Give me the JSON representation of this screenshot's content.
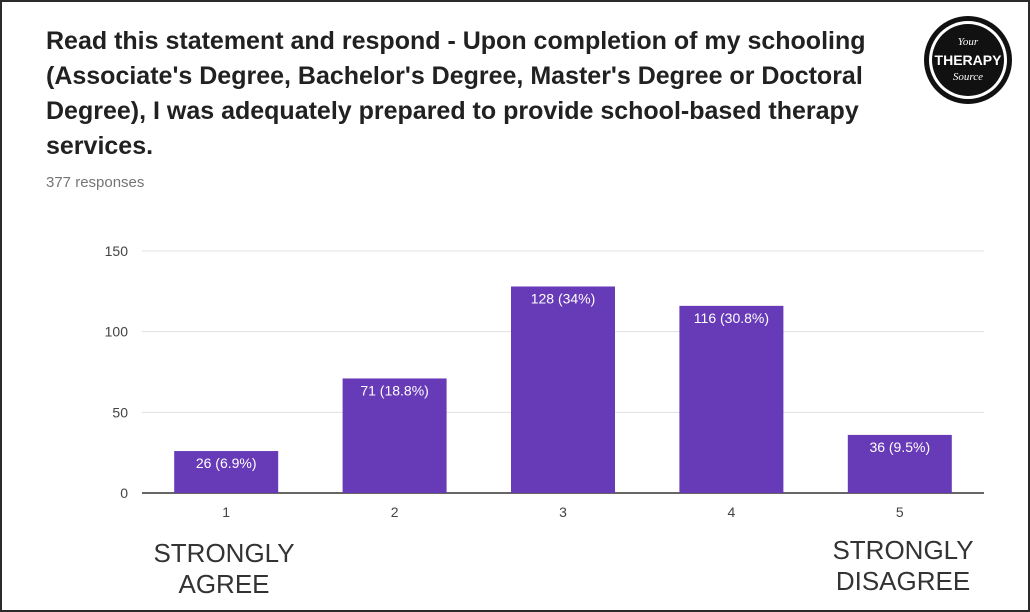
{
  "header": {
    "title": "Read this statement and respond - Upon completion of my schooling (Associate's Degree, Bachelor's Degree, Master's Degree or Doctoral Degree), I was adequately prepared to provide school-based therapy services.",
    "responses": "377 responses"
  },
  "logo": {
    "line1": "Your",
    "line2": "THERAPY",
    "line3": "Source"
  },
  "scale_labels": {
    "left": "STRONGLY AGREE",
    "right": "STRONGLY DISAGREE"
  },
  "chart_data": {
    "type": "bar",
    "categories": [
      "1",
      "2",
      "3",
      "4",
      "5"
    ],
    "values": [
      26,
      71,
      128,
      116,
      36
    ],
    "data_labels": [
      "26 (6.9%)",
      "71 (18.8%)",
      "128 (34%)",
      "116 (30.8%)",
      "36 (9.5%)"
    ],
    "ylim": [
      0,
      150
    ],
    "yticks": [
      0,
      50,
      100,
      150
    ],
    "grid": true,
    "bar_color": "#673ab7"
  }
}
